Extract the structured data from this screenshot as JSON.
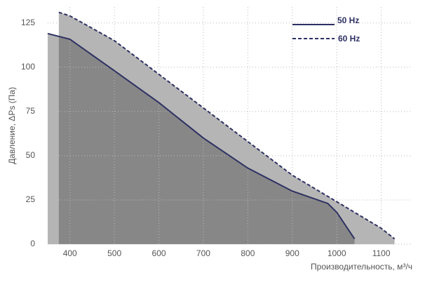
{
  "chart_data": {
    "type": "area-line",
    "xlabel": "Производительность, м³/ч",
    "ylabel": "Давление, ΔPs (Па)",
    "xlim": [
      350,
      1170
    ],
    "ylim": [
      0,
      134
    ],
    "xticks": [
      400,
      500,
      600,
      700,
      800,
      900,
      1000,
      1100
    ],
    "yticks": [
      0,
      25,
      50,
      75,
      100,
      125
    ],
    "grid": true,
    "legend": "upper right",
    "series": [
      {
        "name": "50 Hz",
        "color": "#2e3163",
        "dashed": false,
        "fill": "#878787",
        "x": [
          350,
          400,
          500,
          600,
          700,
          800,
          900,
          980,
          1000,
          1040
        ],
        "values": [
          119,
          115.8,
          98,
          80,
          60,
          43,
          30,
          23,
          18,
          3
        ]
      },
      {
        "name": "60 Hz",
        "color": "#2e3163",
        "dashed": true,
        "fill": "#b5b5b5",
        "x": [
          375,
          400,
          500,
          600,
          700,
          800,
          900,
          1000,
          1100,
          1130
        ],
        "values": [
          131,
          129,
          115,
          96,
          77,
          58,
          39,
          24,
          9,
          3
        ]
      }
    ]
  }
}
